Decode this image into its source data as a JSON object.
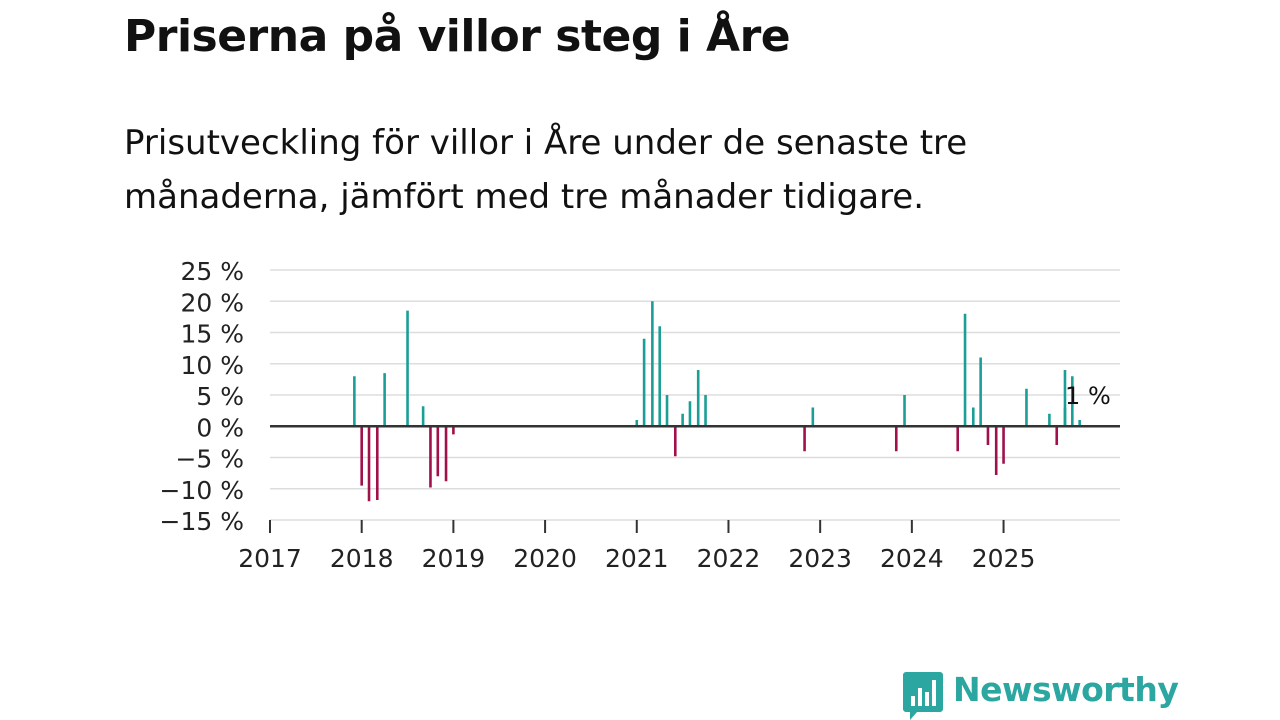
{
  "title": "Priserna på villor steg i Åre",
  "subtitle": "Prisutveckling för villor i Åre under de senaste tre månaderna, jämfört med tre månader tidigare.",
  "brand": {
    "name": "Newsworthy",
    "logo_icon": "bar-chart-speech-bubble-icon",
    "color": "#2ca6a0"
  },
  "chart_data": {
    "type": "bar",
    "title": "Priserna på villor steg i Åre",
    "xlabel": "",
    "ylabel": "",
    "y_unit": " %",
    "ylim": [
      -15,
      25
    ],
    "y_ticks": [
      -15,
      -10,
      -5,
      0,
      5,
      10,
      15,
      20,
      25
    ],
    "y_tick_labels": [
      "−15 %",
      "−10 %",
      "−5 %",
      "0 %",
      "5 %",
      "10 %",
      "15 %",
      "20 %",
      "25 %"
    ],
    "x_range": [
      2017.0,
      2026.27
    ],
    "x_ticks": [
      2017,
      2018,
      2019,
      2020,
      2021,
      2022,
      2023,
      2024,
      2025
    ],
    "x_tick_labels": [
      "2017",
      "2018",
      "2019",
      "2020",
      "2021",
      "2022",
      "2023",
      "2024",
      "2025"
    ],
    "grid": true,
    "colors": {
      "positive": "#1a9e96",
      "negative": "#a0104a",
      "zero_line": "#333333",
      "grid": "#dddddd"
    },
    "annotation": {
      "text": "1 %",
      "x": 2025.92,
      "y": 1
    },
    "series": [
      {
        "name": "Prisutveckling",
        "points": [
          {
            "x": 2017.92,
            "y": 8
          },
          {
            "x": 2018.0,
            "y": -9.5
          },
          {
            "x": 2018.08,
            "y": -12
          },
          {
            "x": 2018.17,
            "y": -11.8
          },
          {
            "x": 2018.25,
            "y": 8.5
          },
          {
            "x": 2018.5,
            "y": 18.5
          },
          {
            "x": 2018.67,
            "y": 3.2
          },
          {
            "x": 2018.75,
            "y": -9.8
          },
          {
            "x": 2018.83,
            "y": -8
          },
          {
            "x": 2018.92,
            "y": -8.8
          },
          {
            "x": 2019.0,
            "y": -1.3
          },
          {
            "x": 2021.0,
            "y": 1
          },
          {
            "x": 2021.08,
            "y": 14
          },
          {
            "x": 2021.17,
            "y": 20
          },
          {
            "x": 2021.25,
            "y": 16
          },
          {
            "x": 2021.33,
            "y": 5
          },
          {
            "x": 2021.42,
            "y": -4.8
          },
          {
            "x": 2021.5,
            "y": 2
          },
          {
            "x": 2021.58,
            "y": 4
          },
          {
            "x": 2021.67,
            "y": 9
          },
          {
            "x": 2021.75,
            "y": 5
          },
          {
            "x": 2022.83,
            "y": -4
          },
          {
            "x": 2022.92,
            "y": 3
          },
          {
            "x": 2023.83,
            "y": -4
          },
          {
            "x": 2023.92,
            "y": 5
          },
          {
            "x": 2024.5,
            "y": -4
          },
          {
            "x": 2024.58,
            "y": 18
          },
          {
            "x": 2024.67,
            "y": 3
          },
          {
            "x": 2024.75,
            "y": 11
          },
          {
            "x": 2024.83,
            "y": -3
          },
          {
            "x": 2024.92,
            "y": -7.8
          },
          {
            "x": 2025.0,
            "y": -6
          },
          {
            "x": 2025.25,
            "y": 6
          },
          {
            "x": 2025.5,
            "y": 2
          },
          {
            "x": 2025.58,
            "y": -3
          },
          {
            "x": 2025.67,
            "y": 3
          },
          {
            "x": 2025.67,
            "y": 9
          },
          {
            "x": 2025.75,
            "y": 8
          },
          {
            "x": 2025.83,
            "y": 1
          }
        ]
      }
    ]
  }
}
